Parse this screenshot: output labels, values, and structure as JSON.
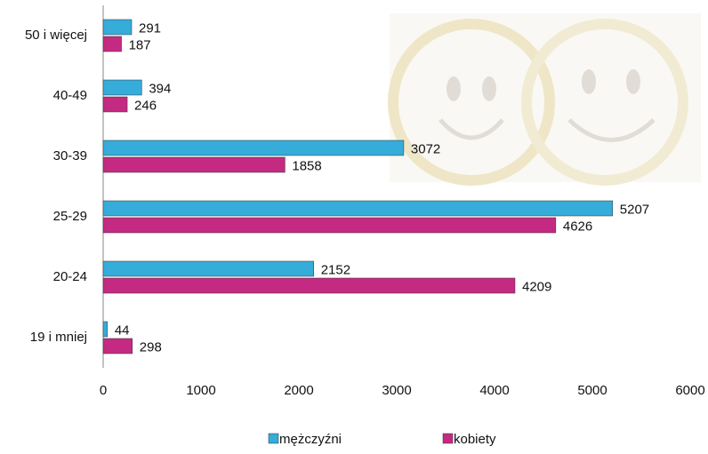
{
  "chart_data": {
    "type": "bar",
    "orientation": "horizontal",
    "categories": [
      "50 i więcej",
      "40-49",
      "30-39",
      "25-29",
      "20-24",
      "19 i mniej"
    ],
    "series": [
      {
        "name": "mężczyźni",
        "color": "#35acd9",
        "values": [
          291,
          394,
          3072,
          5207,
          2152,
          44
        ]
      },
      {
        "name": "kobiety",
        "color": "#c42a82",
        "values": [
          187,
          246,
          1858,
          4626,
          4209,
          298
        ]
      }
    ],
    "xlim": [
      0,
      6000
    ],
    "xticks": [
      0,
      1000,
      2000,
      3000,
      4000,
      5000,
      6000
    ],
    "legend": "bottom"
  }
}
